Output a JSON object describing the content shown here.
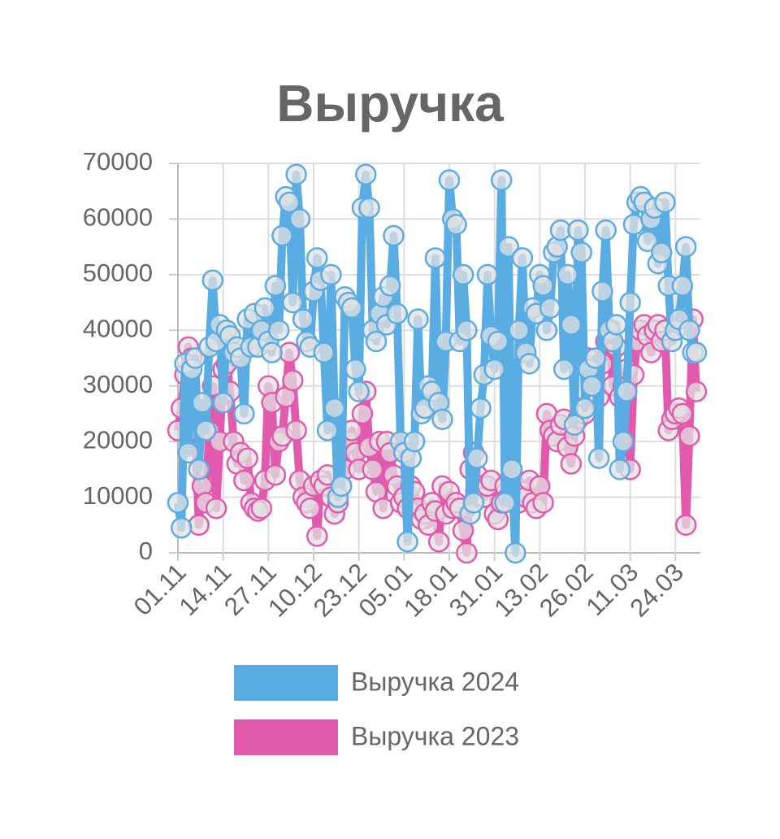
{
  "chart_data": {
    "type": "line",
    "title": "Выручка",
    "categories": [
      "01.11",
      null,
      null,
      null,
      null,
      null,
      null,
      null,
      null,
      null,
      null,
      null,
      null,
      "14.11",
      null,
      null,
      null,
      null,
      null,
      null,
      null,
      null,
      null,
      null,
      null,
      null,
      "27.11",
      null,
      null,
      null,
      null,
      null,
      null,
      null,
      null,
      null,
      null,
      null,
      null,
      "10.12",
      null,
      null,
      null,
      null,
      null,
      null,
      null,
      null,
      null,
      null,
      null,
      null,
      "23.12",
      null,
      null,
      null,
      null,
      null,
      null,
      null,
      null,
      null,
      null,
      null,
      null,
      "05.01",
      null,
      null,
      null,
      null,
      null,
      null,
      null,
      null,
      null,
      null,
      null,
      null,
      "18.01",
      null,
      null,
      null,
      null,
      null,
      null,
      null,
      null,
      null,
      null,
      null,
      null,
      "31.01",
      null,
      null,
      null,
      null,
      null,
      null,
      null,
      null,
      null,
      null,
      null,
      null,
      "13.02",
      null,
      null,
      null,
      null,
      null,
      null,
      null,
      null,
      null,
      null,
      null,
      null,
      "26.02",
      null,
      null,
      null,
      null,
      null,
      null,
      null,
      null,
      null,
      null,
      null,
      null,
      "11.03",
      null,
      null,
      null,
      null,
      null,
      null,
      null,
      null,
      null,
      null,
      null,
      null,
      "24.03",
      null,
      null,
      null,
      null,
      null,
      null
    ],
    "series": [
      {
        "name": "Выручка 2024",
        "color": "#5aade3",
        "values": [
          9000,
          4500,
          34000,
          18000,
          33000,
          35000,
          15000,
          27000,
          22000,
          37000,
          49000,
          38000,
          41000,
          27000,
          40000,
          39000,
          36000,
          37000,
          35000,
          25000,
          42000,
          37000,
          43000,
          37000,
          40000,
          44000,
          38000,
          36000,
          48000,
          40000,
          57000,
          64000,
          63000,
          45000,
          68000,
          60000,
          42000,
          38000,
          37000,
          47000,
          53000,
          49000,
          36000,
          22000,
          50000,
          26000,
          10000,
          12000,
          46000,
          45000,
          44000,
          33000,
          29000,
          62000,
          68000,
          62000,
          40000,
          38000,
          43000,
          46000,
          41000,
          48000,
          57000,
          43000,
          20000,
          18000,
          2000,
          17000,
          20000,
          42000,
          25000,
          26000,
          30000,
          29000,
          53000,
          27000,
          24000,
          38000,
          67000,
          60000,
          59000,
          38000,
          50000,
          40000,
          7000,
          9000,
          17000,
          26000,
          32000,
          50000,
          39000,
          33000,
          38000,
          67000,
          9000,
          55000,
          15000,
          0,
          40000,
          53000,
          36000,
          34000,
          44000,
          43000,
          50000,
          48000,
          40000,
          44000,
          54000,
          55000,
          58000,
          33000,
          50000,
          41000,
          23000,
          58000,
          54000,
          26000,
          33000,
          30000,
          35000,
          17000,
          47000,
          58000,
          40000,
          38000,
          41000,
          15000,
          20000,
          29000,
          45000,
          59000,
          63000,
          64000,
          63000,
          56000,
          60000,
          62000,
          52000,
          54000,
          63000,
          48000,
          38000,
          40000,
          42000,
          48000,
          55000,
          40000,
          36000,
          36000
        ]
      },
      {
        "name": "Выручка 2023",
        "color": "#e15aad",
        "values": [
          22000,
          26000,
          32000,
          37000,
          35000,
          22000,
          5000,
          12000,
          9000,
          22000,
          30000,
          8000,
          20000,
          33000,
          34000,
          29000,
          20000,
          16000,
          18000,
          13000,
          17000,
          9000,
          8000,
          7500,
          8000,
          13000,
          30000,
          27000,
          14000,
          20000,
          21000,
          28000,
          36000,
          31000,
          22000,
          13000,
          10000,
          9000,
          8000,
          12000,
          3000,
          13000,
          12000,
          14000,
          10000,
          7000,
          9000,
          12000,
          15000,
          20000,
          22000,
          18000,
          15000,
          25000,
          29000,
          19000,
          15000,
          11000,
          20000,
          8000,
          20000,
          18000,
          14000,
          12000,
          9000,
          10000,
          8000,
          12000,
          11000,
          8000,
          6000,
          7000,
          5000,
          9000,
          7500,
          2000,
          12000,
          7000,
          11000,
          8000,
          9000,
          8000,
          4000,
          0,
          15000,
          18000,
          14000,
          12000,
          10000,
          12000,
          13000,
          7000,
          6000,
          9000,
          12000,
          10000,
          11000,
          12000,
          9000,
          11000,
          10000,
          13000,
          9000,
          8000,
          12000,
          9000,
          25000,
          22000,
          21000,
          20000,
          23000,
          24000,
          19000,
          16000,
          21000,
          24000,
          26000,
          25000,
          35000,
          33000,
          30000,
          28000,
          34000,
          38000,
          40000,
          30000,
          37000,
          28000,
          30000,
          33000,
          15000,
          32000,
          38000,
          40000,
          41000,
          39000,
          36000,
          40000,
          41000,
          38000,
          40000,
          22000,
          24000,
          25000,
          26000,
          25000,
          5000,
          21000,
          42000,
          29000
        ]
      }
    ],
    "ylim": [
      0,
      70000
    ],
    "yticks": [
      0,
      10000,
      20000,
      30000,
      40000,
      50000,
      60000,
      70000
    ],
    "grid": true
  }
}
